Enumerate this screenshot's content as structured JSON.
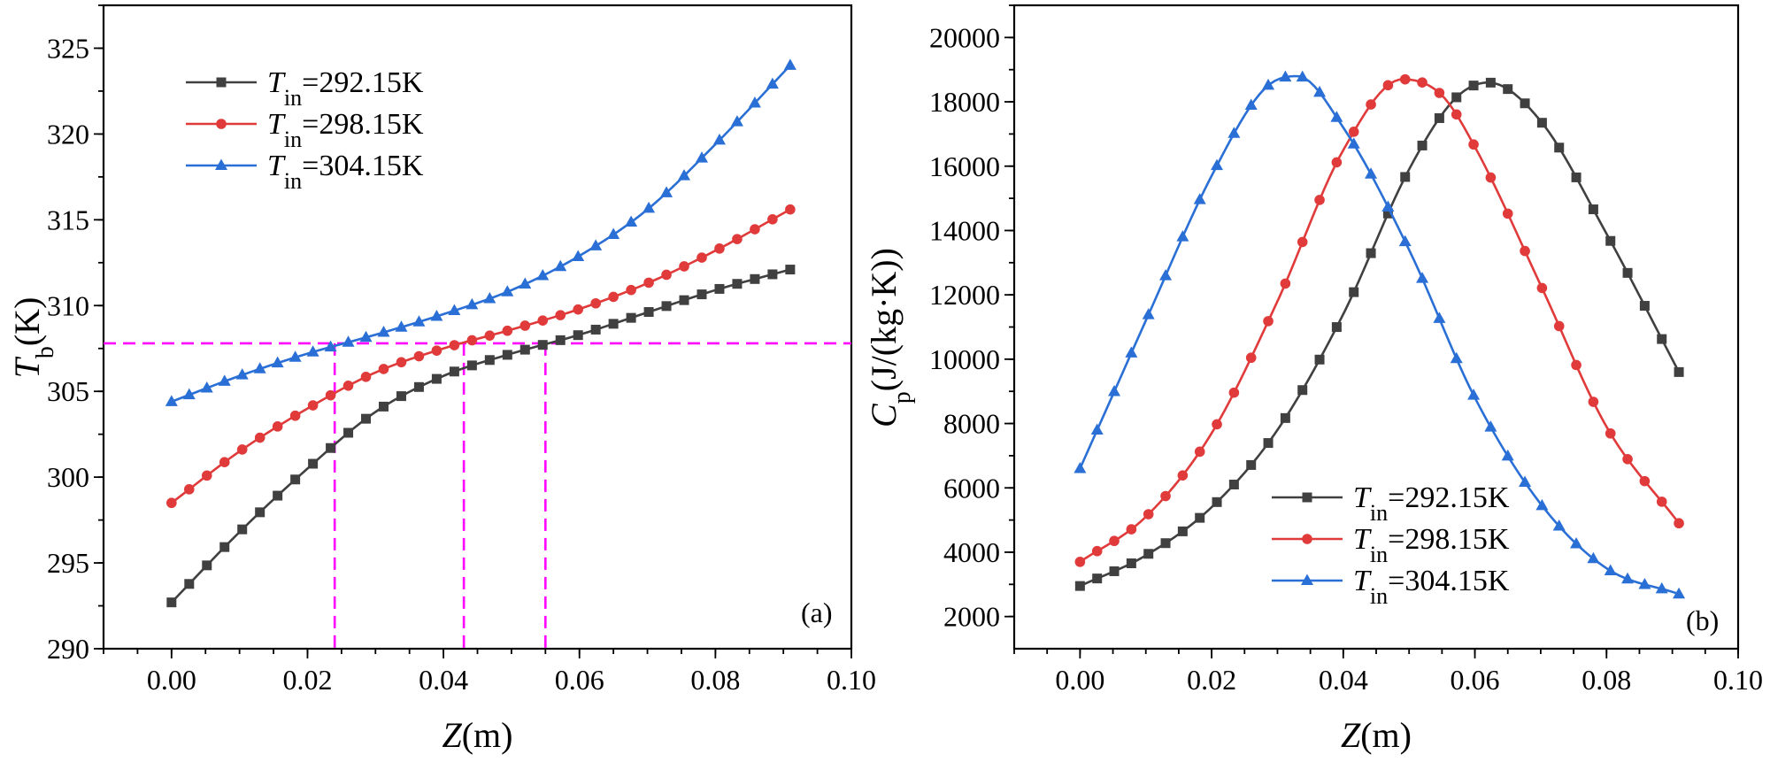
{
  "chart_data": [
    {
      "type": "line",
      "panel_label": "(a)",
      "xlabel": {
        "main": "Z",
        "unit": "(m)"
      },
      "ylabel": {
        "main": "T",
        "sub": "b",
        "unit": "(K)"
      },
      "xlim": [
        -0.01,
        0.1
      ],
      "ylim": [
        290,
        327.5
      ],
      "xticks": [
        0.0,
        0.02,
        0.04,
        0.06,
        0.08,
        0.1
      ],
      "xtick_labels": [
        "0.00",
        "0.02",
        "0.04",
        "0.06",
        "0.08",
        "0.10"
      ],
      "yticks": [
        290,
        295,
        300,
        305,
        310,
        315,
        320,
        325
      ],
      "ytick_labels": [
        "290",
        "295",
        "300",
        "305",
        "310",
        "315",
        "320",
        "325"
      ],
      "legend_position": "top-left",
      "series": [
        {
          "name": "Tin=292.15K",
          "label_main": "T",
          "label_sub": "in",
          "label_rest": "=292.15K",
          "color": "#404040",
          "marker": "square",
          "knots_x": [
            0.0,
            0.01,
            0.02,
            0.03,
            0.04,
            0.05,
            0.06,
            0.07,
            0.08,
            0.091
          ],
          "knots_y": [
            292.7,
            296.8,
            300.5,
            303.8,
            305.9,
            307.2,
            308.3,
            309.6,
            310.9,
            312.1
          ]
        },
        {
          "name": "Tin=298.15K",
          "label_main": "T",
          "label_sub": "in",
          "label_rest": "=298.15K",
          "color": "#e03a3a",
          "marker": "circle",
          "knots_x": [
            0.0,
            0.01,
            0.02,
            0.03,
            0.04,
            0.05,
            0.06,
            0.07,
            0.08,
            0.091
          ],
          "knots_y": [
            298.5,
            301.5,
            304.0,
            306.1,
            307.5,
            308.6,
            309.8,
            311.3,
            313.2,
            315.6
          ]
        },
        {
          "name": "Tin=304.15K",
          "label_main": "T",
          "label_sub": "in",
          "label_rest": "=304.15K",
          "color": "#2a6fd6",
          "marker": "triangle",
          "knots_x": [
            0.0,
            0.01,
            0.02,
            0.03,
            0.04,
            0.05,
            0.06,
            0.07,
            0.08,
            0.091
          ],
          "knots_y": [
            304.4,
            305.9,
            307.2,
            308.3,
            309.5,
            310.9,
            312.9,
            315.6,
            319.4,
            324.0
          ]
        }
      ],
      "reference_lines": {
        "color": "#ff00ff",
        "horizontal_y": 307.8,
        "vertical_x": [
          0.024,
          0.043,
          0.055
        ]
      }
    },
    {
      "type": "line",
      "panel_label": "(b)",
      "xlabel": {
        "main": "Z",
        "unit": "(m)"
      },
      "ylabel": {
        "main": "C",
        "sub": "p",
        "unit": "(J/(kg·K))"
      },
      "xlim": [
        -0.01,
        0.1
      ],
      "ylim": [
        1000,
        21000
      ],
      "xticks": [
        0.0,
        0.02,
        0.04,
        0.06,
        0.08,
        0.1
      ],
      "xtick_labels": [
        "0.00",
        "0.02",
        "0.04",
        "0.06",
        "0.08",
        "0.10"
      ],
      "yticks": [
        2000,
        4000,
        6000,
        8000,
        10000,
        12000,
        14000,
        16000,
        18000,
        20000
      ],
      "ytick_labels": [
        "2000",
        "4000",
        "6000",
        "8000",
        "10000",
        "12000",
        "14000",
        "16000",
        "18000",
        "20000"
      ],
      "legend_position": "bottom-center",
      "series": [
        {
          "name": "Tin=292.15K",
          "label_main": "T",
          "label_sub": "in",
          "label_rest": "=292.15K",
          "color": "#404040",
          "marker": "square",
          "knots_x": [
            0.0,
            0.01,
            0.02,
            0.03,
            0.04,
            0.05,
            0.057,
            0.062,
            0.07,
            0.08,
            0.091
          ],
          "knots_y": [
            2950,
            3900,
            5400,
            7800,
            11400,
            15900,
            18100,
            18600,
            17400,
            13900,
            9600
          ]
        },
        {
          "name": "Tin=298.15K",
          "label_main": "T",
          "label_sub": "in",
          "label_rest": "=298.15K",
          "color": "#e03a3a",
          "marker": "circle",
          "knots_x": [
            0.0,
            0.01,
            0.02,
            0.03,
            0.04,
            0.049,
            0.055,
            0.06,
            0.07,
            0.08,
            0.091
          ],
          "knots_y": [
            3700,
            5100,
            7700,
            11800,
            16500,
            18700,
            18200,
            16600,
            12300,
            7900,
            4900
          ]
        },
        {
          "name": "Tin=304.15K",
          "label_main": "T",
          "label_sub": "in",
          "label_rest": "=304.15K",
          "color": "#2a6fd6",
          "marker": "triangle",
          "knots_x": [
            0.0,
            0.005,
            0.01,
            0.02,
            0.028,
            0.033,
            0.04,
            0.05,
            0.06,
            0.07,
            0.08,
            0.091
          ],
          "knots_y": [
            6600,
            8900,
            11200,
            15700,
            18400,
            18800,
            17200,
            13400,
            8800,
            5500,
            3500,
            2700
          ]
        }
      ]
    }
  ]
}
